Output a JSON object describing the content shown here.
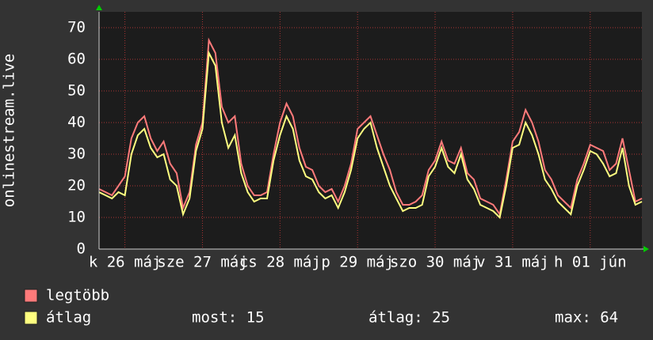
{
  "chart_data": {
    "type": "line",
    "ylabel": "onlinestream.live",
    "xlim": [
      0,
      84
    ],
    "xticks": [
      {
        "value": 4,
        "label": "k 26 máj"
      },
      {
        "value": 16,
        "label": "sze 27 máj"
      },
      {
        "value": 28,
        "label": "cs 28 máj"
      },
      {
        "value": 40,
        "label": "p 29 máj"
      },
      {
        "value": 52,
        "label": "szo 30 máj"
      },
      {
        "value": 64,
        "label": "v 31 máj"
      },
      {
        "value": 76,
        "label": "h 01 jún"
      }
    ],
    "ylim": [
      0,
      75
    ],
    "yticks": [
      0,
      10,
      20,
      30,
      40,
      50,
      60,
      70
    ],
    "grid": true,
    "series": [
      {
        "name": "legtöbb",
        "color": "#ff7a7a",
        "values": [
          19,
          18,
          17,
          20,
          23,
          35,
          40,
          42,
          35,
          31,
          34,
          27,
          24,
          13,
          18,
          33,
          40,
          66,
          62,
          45,
          40,
          42,
          27,
          20,
          17,
          17,
          18,
          30,
          40,
          46,
          42,
          32,
          26,
          25,
          20,
          18,
          19,
          15,
          20,
          27,
          38,
          40,
          42,
          36,
          30,
          25,
          18,
          14,
          14,
          15,
          17,
          25,
          28,
          34,
          28,
          27,
          32,
          24,
          22,
          16,
          15,
          14,
          11,
          22,
          34,
          37,
          44,
          40,
          34,
          25,
          22,
          17,
          15,
          13,
          22,
          27,
          33,
          32,
          31,
          25,
          27,
          35,
          25,
          15,
          16
        ]
      },
      {
        "name": "átlag",
        "color": "#ffff80",
        "values": [
          18,
          17,
          16,
          18,
          17,
          30,
          36,
          38,
          32,
          29,
          30,
          22,
          20,
          11,
          16,
          31,
          38,
          62,
          58,
          40,
          32,
          36,
          24,
          18,
          15,
          16,
          16,
          28,
          36,
          42,
          38,
          28,
          23,
          22,
          18,
          16,
          17,
          13,
          18,
          25,
          35,
          38,
          40,
          32,
          26,
          20,
          16,
          12,
          13,
          13,
          14,
          23,
          26,
          32,
          26,
          24,
          30,
          22,
          19,
          14,
          13,
          12,
          10,
          20,
          32,
          33,
          40,
          36,
          30,
          22,
          19,
          15,
          13,
          11,
          20,
          25,
          31,
          30,
          27,
          23,
          24,
          32,
          20,
          14,
          15
        ]
      }
    ],
    "stats": [
      "most: 15",
      "átlag: 25",
      "max: 64"
    ]
  }
}
